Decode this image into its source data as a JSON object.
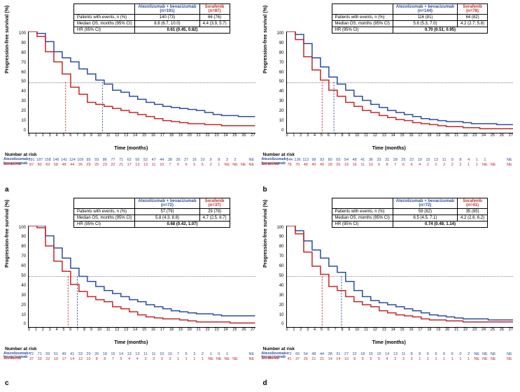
{
  "colors": {
    "blue": "#2b4ea0",
    "red": "#c62828",
    "ref": "#888888",
    "axis": "#000000"
  },
  "axes": {
    "ylabel": "Progression-free survival (%)",
    "xlabel": "Time (months)",
    "nar_label": "Number at risk",
    "yticks": [
      "100",
      "90",
      "80",
      "70",
      "60",
      "50",
      "40",
      "30",
      "20",
      "10",
      "0"
    ],
    "xticks": [
      "0",
      "1",
      "2",
      "3",
      "4",
      "5",
      "6",
      "7",
      "8",
      "9",
      "10",
      "11",
      "12",
      "13",
      "14",
      "15",
      "16",
      "17",
      "18",
      "19",
      "20",
      "21",
      "22",
      "23",
      "24",
      "25",
      "26",
      "27"
    ],
    "ylim": [
      0,
      100
    ],
    "xlim": [
      0,
      27
    ]
  },
  "arms": {
    "blue_name": "Atezolizumab + bevacizumab",
    "red_name": "Sorafenib"
  },
  "panels": {
    "a": {
      "letter": "a",
      "table": {
        "blue_n": "(n=191)",
        "red_n": "(n=87)",
        "rows": [
          [
            "Patients with events, n (%)",
            "140 (73)",
            "66 (76)"
          ],
          [
            "Median OS, months (95% CI)",
            "8.8 (6.7, 10.0)",
            "4.4 (3.9, 5.7)"
          ],
          [
            "HR (95% CI)",
            "0.61 (0.45, 0.82)",
            ""
          ]
        ]
      },
      "median_vlines": {
        "blue_x": 8.8,
        "red_x": 4.4
      },
      "curve_blue": [
        [
          0,
          100
        ],
        [
          1,
          98
        ],
        [
          2,
          90
        ],
        [
          3,
          80
        ],
        [
          4,
          74
        ],
        [
          5,
          70
        ],
        [
          6,
          63
        ],
        [
          7,
          58
        ],
        [
          8,
          52
        ],
        [
          9,
          48
        ],
        [
          10,
          42
        ],
        [
          11,
          40
        ],
        [
          12,
          36
        ],
        [
          13,
          33
        ],
        [
          14,
          30
        ],
        [
          15,
          28
        ],
        [
          16,
          26
        ],
        [
          17,
          25
        ],
        [
          18,
          24
        ],
        [
          19,
          23
        ],
        [
          20,
          22
        ],
        [
          21,
          20
        ],
        [
          22,
          18
        ],
        [
          23,
          17
        ],
        [
          24,
          17
        ],
        [
          25,
          16
        ],
        [
          26,
          16
        ],
        [
          27,
          16
        ]
      ],
      "curve_red": [
        [
          0,
          100
        ],
        [
          1,
          95
        ],
        [
          2,
          80
        ],
        [
          3,
          70
        ],
        [
          4,
          58
        ],
        [
          5,
          45
        ],
        [
          6,
          38
        ],
        [
          7,
          30
        ],
        [
          8,
          28
        ],
        [
          9,
          26
        ],
        [
          10,
          24
        ],
        [
          11,
          22
        ],
        [
          12,
          20
        ],
        [
          13,
          18
        ],
        [
          14,
          16
        ],
        [
          15,
          14
        ],
        [
          16,
          12
        ],
        [
          17,
          11
        ],
        [
          18,
          10
        ],
        [
          19,
          9
        ],
        [
          20,
          9
        ],
        [
          21,
          8
        ],
        [
          22,
          8
        ],
        [
          23,
          7
        ],
        [
          24,
          7
        ],
        [
          25,
          7
        ],
        [
          26,
          7
        ],
        [
          27,
          7
        ]
      ],
      "nar_blue": [
        "191",
        "187",
        "158",
        "146",
        "141",
        "124",
        "109",
        "95",
        "93",
        "86",
        "77",
        "71",
        "62",
        "56",
        "52",
        "47",
        "44",
        "38",
        "35",
        "27",
        "16",
        "10",
        "9",
        "8",
        "3",
        "2",
        "",
        "NE"
      ],
      "nar_red": [
        "87",
        "80",
        "69",
        "58",
        "48",
        "44",
        "35",
        "29",
        "25",
        "23",
        "22",
        "21",
        "17",
        "13",
        "13",
        "11",
        "10",
        "7",
        "6",
        "6",
        "5",
        "5",
        "2",
        "1",
        "NE",
        "NE",
        "NE",
        "NE"
      ]
    },
    "b": {
      "letter": "b",
      "table": {
        "blue_n": "(n=144)",
        "red_n": "(n=78)",
        "rows": [
          [
            "Patients with events, n (%)",
            "116 (81)",
            "64 (82)"
          ],
          [
            "Median OS, months (95% CI)",
            "5.6 (5.3, 7.0)",
            "4.2 (2.7, 5.8)"
          ],
          [
            "HR (95% CI)",
            "0.70 (0.51, 0.95)",
            ""
          ]
        ]
      },
      "median_vlines": {
        "blue_x": 5.6,
        "red_x": 4.2
      },
      "curve_blue": [
        [
          0,
          100
        ],
        [
          1,
          97
        ],
        [
          2,
          88
        ],
        [
          3,
          74
        ],
        [
          4,
          65
        ],
        [
          5,
          55
        ],
        [
          6,
          48
        ],
        [
          7,
          42
        ],
        [
          8,
          36
        ],
        [
          9,
          32
        ],
        [
          10,
          28
        ],
        [
          11,
          25
        ],
        [
          12,
          22
        ],
        [
          13,
          20
        ],
        [
          14,
          18
        ],
        [
          15,
          16
        ],
        [
          16,
          14
        ],
        [
          17,
          13
        ],
        [
          18,
          12
        ],
        [
          19,
          11
        ],
        [
          20,
          11
        ],
        [
          21,
          10
        ],
        [
          22,
          9
        ],
        [
          23,
          9
        ],
        [
          24,
          9
        ],
        [
          25,
          8
        ],
        [
          26,
          8
        ],
        [
          27,
          8
        ]
      ],
      "curve_red": [
        [
          0,
          100
        ],
        [
          1,
          92
        ],
        [
          2,
          75
        ],
        [
          3,
          62
        ],
        [
          4,
          52
        ],
        [
          5,
          42
        ],
        [
          6,
          36
        ],
        [
          7,
          30
        ],
        [
          8,
          26
        ],
        [
          9,
          22
        ],
        [
          10,
          20
        ],
        [
          11,
          17
        ],
        [
          12,
          15
        ],
        [
          13,
          13
        ],
        [
          14,
          12
        ],
        [
          15,
          10
        ],
        [
          16,
          9
        ],
        [
          17,
          8
        ],
        [
          18,
          7
        ],
        [
          19,
          6
        ],
        [
          20,
          6
        ],
        [
          21,
          5
        ],
        [
          22,
          5
        ],
        [
          23,
          4
        ],
        [
          24,
          4
        ],
        [
          25,
          4
        ],
        [
          26,
          4
        ],
        [
          27,
          4
        ]
      ],
      "nar_blue": [
        "144",
        "136",
        "113",
        "99",
        "93",
        "80",
        "65",
        "54",
        "48",
        "41",
        "36",
        "33",
        "31",
        "28",
        "25",
        "22",
        "19",
        "15",
        "13",
        "11",
        "9",
        "8",
        "4",
        "1",
        "1",
        "",
        "",
        "NE"
      ],
      "nar_red": [
        "78",
        "70",
        "48",
        "40",
        "40",
        "28",
        "26",
        "19",
        "16",
        "11",
        "10",
        "9",
        "8",
        "7",
        "6",
        "6",
        "4",
        "2",
        "2",
        "2",
        "2",
        "2",
        "1",
        "1",
        "NE",
        "NE",
        "",
        "NE"
      ]
    },
    "c": {
      "letter": "c",
      "table": {
        "blue_n": "(n=72)",
        "red_n": "(n=37)",
        "rows": [
          [
            "Patients with events, n (%)",
            "57 (79)",
            "29 (78)"
          ],
          [
            "Median OS, months (95% CI)",
            "5.8 (4.3, 8.8)",
            "4.7 (2.5, 6.7)"
          ],
          [
            "HR (95% CI)",
            "0.68 (0.43, 1.07)",
            ""
          ]
        ]
      },
      "median_vlines": {
        "blue_x": 5.8,
        "red_x": 4.7
      },
      "curve_blue": [
        [
          0,
          100
        ],
        [
          1,
          100
        ],
        [
          2,
          90
        ],
        [
          3,
          78
        ],
        [
          4,
          68
        ],
        [
          5,
          58
        ],
        [
          6,
          50
        ],
        [
          7,
          45
        ],
        [
          8,
          40
        ],
        [
          9,
          36
        ],
        [
          10,
          33
        ],
        [
          11,
          30
        ],
        [
          12,
          27
        ],
        [
          13,
          25
        ],
        [
          14,
          22
        ],
        [
          15,
          20
        ],
        [
          16,
          18
        ],
        [
          17,
          16
        ],
        [
          18,
          15
        ],
        [
          19,
          14
        ],
        [
          20,
          13
        ],
        [
          21,
          13
        ],
        [
          22,
          12
        ],
        [
          23,
          11
        ],
        [
          24,
          11
        ],
        [
          25,
          11
        ],
        [
          26,
          11
        ],
        [
          27,
          11
        ]
      ],
      "curve_red": [
        [
          0,
          100
        ],
        [
          1,
          98
        ],
        [
          2,
          80
        ],
        [
          3,
          65
        ],
        [
          4,
          55
        ],
        [
          5,
          42
        ],
        [
          6,
          35
        ],
        [
          7,
          30
        ],
        [
          8,
          27
        ],
        [
          9,
          25
        ],
        [
          10,
          20
        ],
        [
          11,
          18
        ],
        [
          12,
          15
        ],
        [
          13,
          12
        ],
        [
          14,
          10
        ],
        [
          15,
          9
        ],
        [
          16,
          8
        ],
        [
          17,
          8
        ],
        [
          18,
          7
        ],
        [
          19,
          6
        ],
        [
          20,
          5
        ],
        [
          21,
          5
        ],
        [
          22,
          5
        ],
        [
          23,
          5
        ],
        [
          24,
          4
        ],
        [
          25,
          4
        ],
        [
          26,
          4
        ],
        [
          27,
          4
        ]
      ],
      "nar_blue": [
        "72",
        "71",
        "59",
        "51",
        "49",
        "41",
        "33",
        "29",
        "26",
        "18",
        "15",
        "14",
        "13",
        "13",
        "11",
        "11",
        "10",
        "10",
        "7",
        "5",
        "3",
        "2",
        "1",
        "0",
        "1",
        "",
        "",
        "NE"
      ],
      "nar_red": [
        "37",
        "33",
        "22",
        "19",
        "17",
        "14",
        "12",
        "10",
        "8",
        "8",
        "7",
        "5",
        "4",
        "4",
        "3",
        "3",
        "3",
        "3",
        "1",
        "1",
        "1",
        "1",
        "NE",
        "NE",
        "NE",
        "NE",
        "",
        "NE"
      ]
    },
    "d": {
      "letter": "d",
      "table": {
        "blue_n": "(n=72)",
        "red_n": "(n=41)",
        "rows": [
          [
            "Patients with events, n (%)",
            "59 (82)",
            "35 (85)"
          ],
          [
            "Median OS, months (95% CI)",
            "6.5 (4.5, 7.1)",
            "4.2 (2.6, 6.2)"
          ],
          [
            "HR (95% CI)",
            "0.74 (0.49, 1.14)",
            ""
          ]
        ]
      },
      "median_vlines": {
        "blue_x": 6.5,
        "red_x": 4.2
      },
      "curve_blue": [
        [
          0,
          100
        ],
        [
          1,
          95
        ],
        [
          2,
          85
        ],
        [
          3,
          76
        ],
        [
          4,
          68
        ],
        [
          5,
          60
        ],
        [
          6,
          54
        ],
        [
          7,
          45
        ],
        [
          8,
          36
        ],
        [
          9,
          30
        ],
        [
          10,
          26
        ],
        [
          11,
          24
        ],
        [
          12,
          22
        ],
        [
          13,
          20
        ],
        [
          14,
          18
        ],
        [
          15,
          16
        ],
        [
          16,
          14
        ],
        [
          17,
          12
        ],
        [
          18,
          11
        ],
        [
          19,
          10
        ],
        [
          20,
          9
        ],
        [
          21,
          8
        ],
        [
          22,
          8
        ],
        [
          23,
          8
        ],
        [
          24,
          7
        ],
        [
          25,
          7
        ],
        [
          26,
          7
        ],
        [
          27,
          7
        ]
      ],
      "curve_red": [
        [
          0,
          100
        ],
        [
          1,
          92
        ],
        [
          2,
          74
        ],
        [
          3,
          60
        ],
        [
          4,
          52
        ],
        [
          5,
          40
        ],
        [
          6,
          36
        ],
        [
          7,
          30
        ],
        [
          8,
          25
        ],
        [
          9,
          22
        ],
        [
          10,
          20
        ],
        [
          11,
          16
        ],
        [
          12,
          14
        ],
        [
          13,
          12
        ],
        [
          14,
          11
        ],
        [
          15,
          10
        ],
        [
          16,
          8
        ],
        [
          17,
          7
        ],
        [
          18,
          7
        ],
        [
          19,
          6
        ],
        [
          20,
          6
        ],
        [
          21,
          5
        ],
        [
          22,
          5
        ],
        [
          23,
          5
        ],
        [
          24,
          5
        ],
        [
          25,
          5
        ],
        [
          26,
          5
        ],
        [
          27,
          5
        ]
      ],
      "nar_blue": [
        "72",
        "65",
        "54",
        "48",
        "44",
        "38",
        "31",
        "27",
        "22",
        "18",
        "15",
        "15",
        "14",
        "13",
        "11",
        "8",
        "8",
        "6",
        "6",
        "6",
        "6",
        "0",
        "2",
        "NE",
        "NE",
        "NE",
        "",
        "NE"
      ],
      "nar_red": [
        "41",
        "37",
        "26",
        "21",
        "21",
        "14",
        "14",
        "10",
        "8",
        "5",
        "5",
        "5",
        "4",
        "3",
        "3",
        "3",
        "1",
        "1",
        "1",
        "1",
        "1",
        "1",
        "1",
        "NE",
        "NE",
        "NE",
        "",
        "NE"
      ]
    }
  }
}
